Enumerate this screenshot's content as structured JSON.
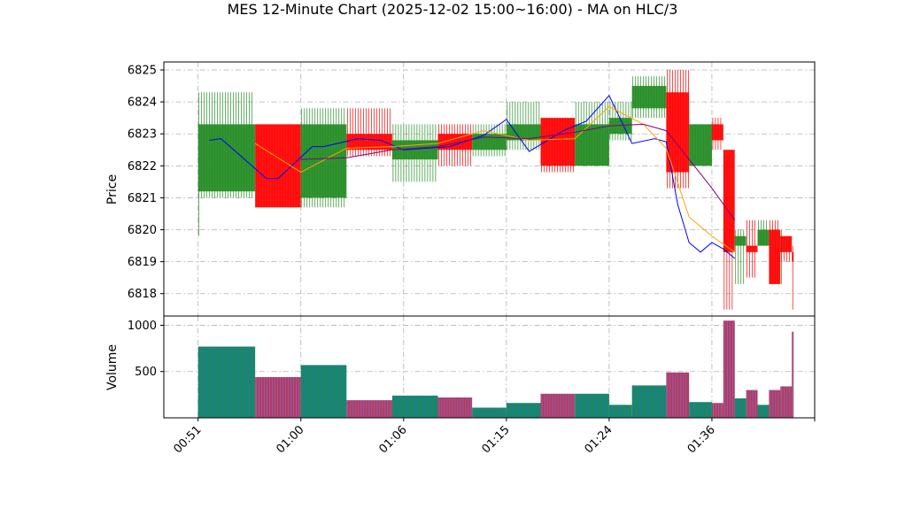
{
  "chart_data": {
    "title": "MES 12-Minute Chart (2025-12-02 15:00~16:00) - MA on HLC/3",
    "type": "candlestick",
    "price_panel": {
      "ylabel": "Price",
      "ylim": [
        6817.3,
        6825.25
      ],
      "yticks": [
        "6818",
        "6819",
        "6820",
        "6821",
        "6822",
        "6823",
        "6824",
        "6825"
      ],
      "candles": [
        {
          "t0": "00:51",
          "t1": "00:51",
          "open": 6821.2,
          "close": 6821.3,
          "high": 6821.3,
          "low": 6819.8,
          "up": true
        },
        {
          "t0": "00:51",
          "t1": "00:56",
          "open": 6821.2,
          "close": 6823.3,
          "high": 6824.3,
          "low": 6821.0,
          "up": true
        },
        {
          "t0": "00:56",
          "t1": "01:00",
          "open": 6823.3,
          "close": 6820.7,
          "high": 6823.3,
          "low": 6820.7,
          "up": false
        },
        {
          "t0": "01:00",
          "t1": "01:04",
          "open": 6821.0,
          "close": 6823.3,
          "high": 6823.8,
          "low": 6820.7,
          "up": true
        },
        {
          "t0": "01:04",
          "t1": "01:08",
          "open": 6823.0,
          "close": 6822.5,
          "high": 6823.8,
          "low": 6822.3,
          "up": false
        },
        {
          "t0": "01:08",
          "t1": "01:12",
          "open": 6822.2,
          "close": 6822.8,
          "high": 6823.3,
          "low": 6821.5,
          "up": true
        },
        {
          "t0": "01:12",
          "t1": "01:15",
          "open": 6823.0,
          "close": 6822.5,
          "high": 6823.3,
          "low": 6822.0,
          "up": false
        },
        {
          "t0": "01:15",
          "t1": "01:18",
          "open": 6822.5,
          "close": 6823.0,
          "high": 6823.3,
          "low": 6822.3,
          "up": true
        },
        {
          "t0": "01:18",
          "t1": "01:21",
          "open": 6822.8,
          "close": 6823.3,
          "high": 6824.0,
          "low": 6822.5,
          "up": true
        },
        {
          "t0": "01:21",
          "t1": "01:24",
          "open": 6823.5,
          "close": 6822.0,
          "high": 6823.5,
          "low": 6821.8,
          "up": false
        },
        {
          "t0": "01:24",
          "t1": "01:27",
          "open": 6822.0,
          "close": 6823.3,
          "high": 6824.0,
          "low": 6822.0,
          "up": true
        },
        {
          "t0": "01:27",
          "t1": "01:29",
          "open": 6823.0,
          "close": 6823.5,
          "high": 6824.0,
          "low": 6822.8,
          "up": true
        },
        {
          "t0": "01:29",
          "t1": "01:32",
          "open": 6823.8,
          "close": 6824.5,
          "high": 6824.8,
          "low": 6823.5,
          "up": true
        },
        {
          "t0": "01:32",
          "t1": "01:34",
          "open": 6824.3,
          "close": 6821.8,
          "high": 6825.0,
          "low": 6821.3,
          "up": false
        },
        {
          "t0": "01:34",
          "t1": "01:36",
          "open": 6822.0,
          "close": 6823.3,
          "high": 6823.3,
          "low": 6822.0,
          "up": true
        },
        {
          "t0": "01:36",
          "t1": "01:37",
          "open": 6823.3,
          "close": 6822.8,
          "high": 6823.5,
          "low": 6822.5,
          "up": false
        },
        {
          "t0": "01:37",
          "t1": "01:38",
          "open": 6822.5,
          "close": 6819.3,
          "high": 6822.5,
          "low": 6817.5,
          "up": false
        },
        {
          "t0": "01:38",
          "t1": "01:39",
          "open": 6819.5,
          "close": 6819.8,
          "high": 6820.0,
          "low": 6818.3,
          "up": true
        },
        {
          "t0": "01:39",
          "t1": "01:40",
          "open": 6819.5,
          "close": 6819.3,
          "high": 6820.3,
          "low": 6818.5,
          "up": false
        },
        {
          "t0": "01:40",
          "t1": "01:41",
          "open": 6819.5,
          "close": 6820.0,
          "high": 6820.3,
          "low": 6819.5,
          "up": true
        },
        {
          "t0": "01:41",
          "t1": "01:42",
          "open": 6820.0,
          "close": 6818.3,
          "high": 6820.3,
          "low": 6818.3,
          "up": false
        },
        {
          "t0": "01:42",
          "t1": "01:42",
          "open": 6819.3,
          "close": 6819.8,
          "high": 6820.0,
          "low": 6818.3,
          "up": true
        },
        {
          "t0": "01:42",
          "t1": "01:43",
          "open": 6819.8,
          "close": 6819.3,
          "high": 6819.8,
          "low": 6819.0,
          "up": false
        },
        {
          "t0": "01:43",
          "t1": "01:43",
          "open": 6819.3,
          "close": 6819.0,
          "high": 6819.5,
          "low": 6817.5,
          "up": false
        }
      ],
      "ma_lines": [
        {
          "color": "#0000ff",
          "points": [
            [
              "00:52",
              6822.8
            ],
            [
              "00:53",
              6822.85
            ],
            [
              "00:57",
              6821.6
            ],
            [
              "00:58",
              6821.6
            ],
            [
              "01:01",
              6822.6
            ],
            [
              "01:02",
              6822.6
            ],
            [
              "01:05",
              6822.85
            ],
            [
              "01:07",
              6822.8
            ],
            [
              "01:09",
              6822.5
            ],
            [
              "01:13",
              6822.6
            ],
            [
              "01:16",
              6822.95
            ],
            [
              "01:18",
              6823.45
            ],
            [
              "01:20",
              6822.45
            ],
            [
              "01:23",
              6823.1
            ],
            [
              "01:25",
              6823.4
            ],
            [
              "01:27",
              6824.2
            ],
            [
              "01:29",
              6822.7
            ],
            [
              "01:31",
              6822.85
            ],
            [
              "01:32",
              6822.75
            ],
            [
              "01:33",
              6820.8
            ],
            [
              "01:34",
              6819.6
            ],
            [
              "01:35",
              6819.3
            ],
            [
              "01:36",
              6819.6
            ],
            [
              "01:37",
              6819.4
            ],
            [
              "01:38",
              6819.1
            ]
          ]
        },
        {
          "color": "#ffa500",
          "points": [
            [
              "00:56",
              6822.7
            ],
            [
              "01:00",
              6821.8
            ],
            [
              "01:04",
              6822.55
            ],
            [
              "01:08",
              6822.6
            ],
            [
              "01:12",
              6822.7
            ],
            [
              "01:16",
              6823.1
            ],
            [
              "01:20",
              6822.8
            ],
            [
              "01:24",
              6822.85
            ],
            [
              "01:27",
              6823.85
            ],
            [
              "01:30",
              6823.3
            ],
            [
              "01:32",
              6822.55
            ],
            [
              "01:34",
              6820.4
            ],
            [
              "01:36",
              6819.8
            ],
            [
              "01:38",
              6819.3
            ]
          ]
        },
        {
          "color": "#800080",
          "points": [
            [
              "01:00",
              6822.2
            ],
            [
              "01:04",
              6822.25
            ],
            [
              "01:08",
              6822.5
            ],
            [
              "01:12",
              6822.6
            ],
            [
              "01:16",
              6822.9
            ],
            [
              "01:20",
              6822.85
            ],
            [
              "01:24",
              6823.05
            ],
            [
              "01:27",
              6823.25
            ],
            [
              "01:30",
              6823.3
            ],
            [
              "01:32",
              6823.1
            ],
            [
              "01:34",
              6822.2
            ],
            [
              "01:36",
              6821.3
            ],
            [
              "01:38",
              6820.3
            ]
          ]
        }
      ]
    },
    "volume_panel": {
      "ylabel": "Volume",
      "ylim": [
        0,
        1100
      ],
      "yticks": [
        "500",
        "1000"
      ],
      "bars": [
        {
          "t0": "00:51",
          "t1": "00:51",
          "value": 220,
          "up": true
        },
        {
          "t0": "00:51",
          "t1": "00:56",
          "value": 770,
          "up": true
        },
        {
          "t0": "00:56",
          "t1": "01:00",
          "value": 440,
          "up": false
        },
        {
          "t0": "01:00",
          "t1": "01:04",
          "value": 570,
          "up": true
        },
        {
          "t0": "01:04",
          "t1": "01:08",
          "value": 190,
          "up": false
        },
        {
          "t0": "01:08",
          "t1": "01:12",
          "value": 240,
          "up": true
        },
        {
          "t0": "01:12",
          "t1": "01:15",
          "value": 220,
          "up": false
        },
        {
          "t0": "01:15",
          "t1": "01:18",
          "value": 110,
          "up": true
        },
        {
          "t0": "01:18",
          "t1": "01:21",
          "value": 160,
          "up": true
        },
        {
          "t0": "01:21",
          "t1": "01:24",
          "value": 260,
          "up": false
        },
        {
          "t0": "01:24",
          "t1": "01:27",
          "value": 260,
          "up": true
        },
        {
          "t0": "01:27",
          "t1": "01:29",
          "value": 140,
          "up": true
        },
        {
          "t0": "01:29",
          "t1": "01:32",
          "value": 350,
          "up": true
        },
        {
          "t0": "01:32",
          "t1": "01:34",
          "value": 490,
          "up": false
        },
        {
          "t0": "01:34",
          "t1": "01:36",
          "value": 170,
          "up": true
        },
        {
          "t0": "01:36",
          "t1": "01:37",
          "value": 160,
          "up": false
        },
        {
          "t0": "01:37",
          "t1": "01:38",
          "value": 1050,
          "up": false
        },
        {
          "t0": "01:38",
          "t1": "01:39",
          "value": 210,
          "up": true
        },
        {
          "t0": "01:39",
          "t1": "01:40",
          "value": 300,
          "up": false
        },
        {
          "t0": "01:40",
          "t1": "01:41",
          "value": 140,
          "up": true
        },
        {
          "t0": "01:41",
          "t1": "01:42",
          "value": 300,
          "up": false
        },
        {
          "t0": "01:42",
          "t1": "01:42",
          "value": 240,
          "up": true
        },
        {
          "t0": "01:42",
          "t1": "01:43",
          "value": 340,
          "up": false
        },
        {
          "t0": "01:43",
          "t1": "01:43",
          "value": 930,
          "up": false
        }
      ]
    },
    "x_axis": {
      "xlim": [
        "00:48",
        "01:45"
      ],
      "ticks": [
        "00:51",
        "01:00",
        "01:06",
        "01:15",
        "01:24",
        "01:36"
      ],
      "tick_positions": [
        "00:51",
        "01:00",
        "01:09",
        "01:18",
        "01:27",
        "01:36"
      ],
      "extra_tick": "01:45"
    },
    "grid": true,
    "colors": {
      "up": "#228b22",
      "down": "#ff0000",
      "volume_edge_up": "#1f77b4",
      "volume_edge_down": "#9467bd"
    }
  }
}
